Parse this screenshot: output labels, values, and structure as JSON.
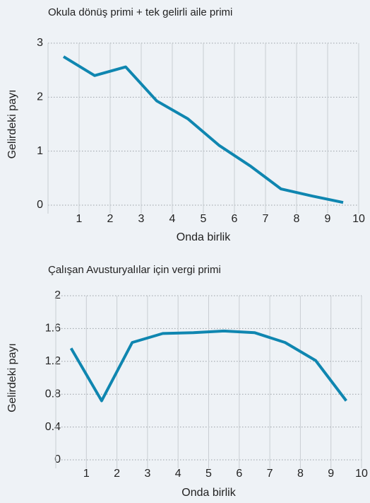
{
  "chart_data": [
    {
      "type": "line",
      "title": "Okula dönüş primi + tek gelirli aile primi",
      "x_label": "Onda birlik",
      "y_label": "Gelirdeki payı",
      "x": [
        0.5,
        1.5,
        2.5,
        3.5,
        4.5,
        5.5,
        6.5,
        7.5,
        8.5,
        9.5
      ],
      "series": [
        {
          "name": "Okula dönüş primi + tek gelirli aile primi",
          "color": "#0f86b0",
          "values": [
            2.75,
            2.4,
            2.56,
            1.93,
            1.6,
            1.11,
            0.73,
            0.3,
            0.17,
            0.05
          ]
        }
      ],
      "xlim": [
        0,
        10
      ],
      "xticks": [
        1,
        2,
        3,
        4,
        5,
        6,
        7,
        8,
        9,
        10
      ],
      "ylim": [
        0,
        3
      ],
      "yticks": [
        0,
        1,
        2,
        3
      ],
      "grid": true
    },
    {
      "type": "line",
      "title": "Çalışan Avusturyalılar için vergi primi",
      "x_label": "Onda birlik",
      "y_label": "Gelirdeki payı",
      "x": [
        0.5,
        1.5,
        2.5,
        3.5,
        4.5,
        5.5,
        6.5,
        7.5,
        8.5,
        9.5
      ],
      "series": [
        {
          "name": "Çalışan Avusturyalılar için vergi primi",
          "color": "#0f86b0",
          "values": [
            1.36,
            0.72,
            1.43,
            1.54,
            1.55,
            1.57,
            1.55,
            1.43,
            1.21,
            0.72
          ]
        }
      ],
      "xlim": [
        0,
        10
      ],
      "xticks": [
        1,
        2,
        3,
        4,
        5,
        6,
        7,
        8,
        9,
        10
      ],
      "ylim": [
        0,
        2
      ],
      "yticks": [
        0,
        0.4,
        0.8,
        1.2,
        1.6,
        2
      ],
      "grid": true
    }
  ]
}
